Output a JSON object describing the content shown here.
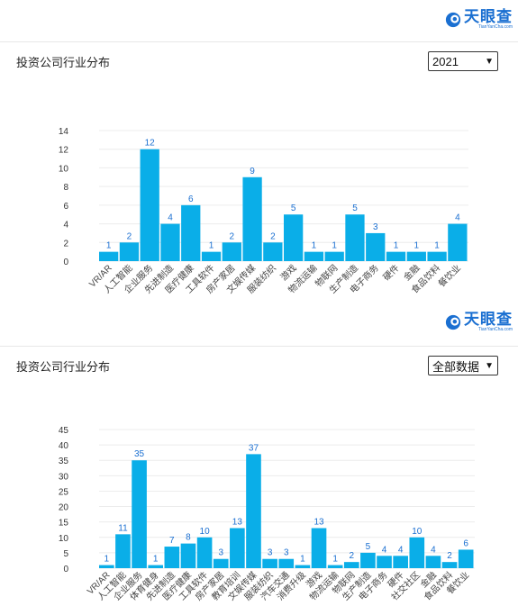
{
  "brand": {
    "name": "天眼查",
    "sub": "TianYanCha.com",
    "color": "#1a6fd1"
  },
  "charts": [
    {
      "title": "投资公司行业分布",
      "select_value": "2021",
      "bar_color": "#0aaee8",
      "label_color": "#1a6fd1"
    },
    {
      "title": "投资公司行业分布",
      "select_value": "全部数据",
      "bar_color": "#0aaee8",
      "label_color": "#1a6fd1"
    }
  ],
  "chart_data": [
    {
      "type": "bar",
      "title": "投资公司行业分布",
      "categories": [
        "VR/AR",
        "人工智能",
        "企业服务",
        "先进制造",
        "医疗健康",
        "工具软件",
        "房产家居",
        "文娱传媒",
        "服装纺织",
        "游戏",
        "物流运输",
        "物联网",
        "生产制造",
        "电子商务",
        "硬件",
        "金融",
        "食品饮料",
        "餐饮业"
      ],
      "values": [
        1,
        2,
        12,
        4,
        6,
        1,
        2,
        9,
        2,
        5,
        1,
        1,
        5,
        3,
        1,
        1,
        1,
        4
      ],
      "ylim": [
        0,
        14
      ],
      "yticks": [
        0,
        2,
        4,
        6,
        8,
        10,
        12,
        14
      ],
      "grid": true
    },
    {
      "type": "bar",
      "title": "投资公司行业分布",
      "categories": [
        "VR/AR",
        "人工智能",
        "企业服务",
        "体育健身",
        "先进制造",
        "医疗健康",
        "工具软件",
        "房产家居",
        "教育培训",
        "文娱传媒",
        "服装纺织",
        "汽车交通",
        "消费升级",
        "游戏",
        "物流运输",
        "物联网",
        "生产制造",
        "电子商务",
        "硬件",
        "社交社区",
        "金融",
        "食品饮料",
        "餐饮业"
      ],
      "values": [
        1,
        11,
        35,
        1,
        7,
        8,
        10,
        3,
        13,
        37,
        3,
        3,
        1,
        13,
        1,
        2,
        5,
        4,
        4,
        10,
        4,
        2,
        6
      ],
      "ylim": [
        0,
        45
      ],
      "yticks": [
        0,
        5,
        10,
        15,
        20,
        25,
        30,
        35,
        40,
        45
      ],
      "grid": true
    }
  ]
}
